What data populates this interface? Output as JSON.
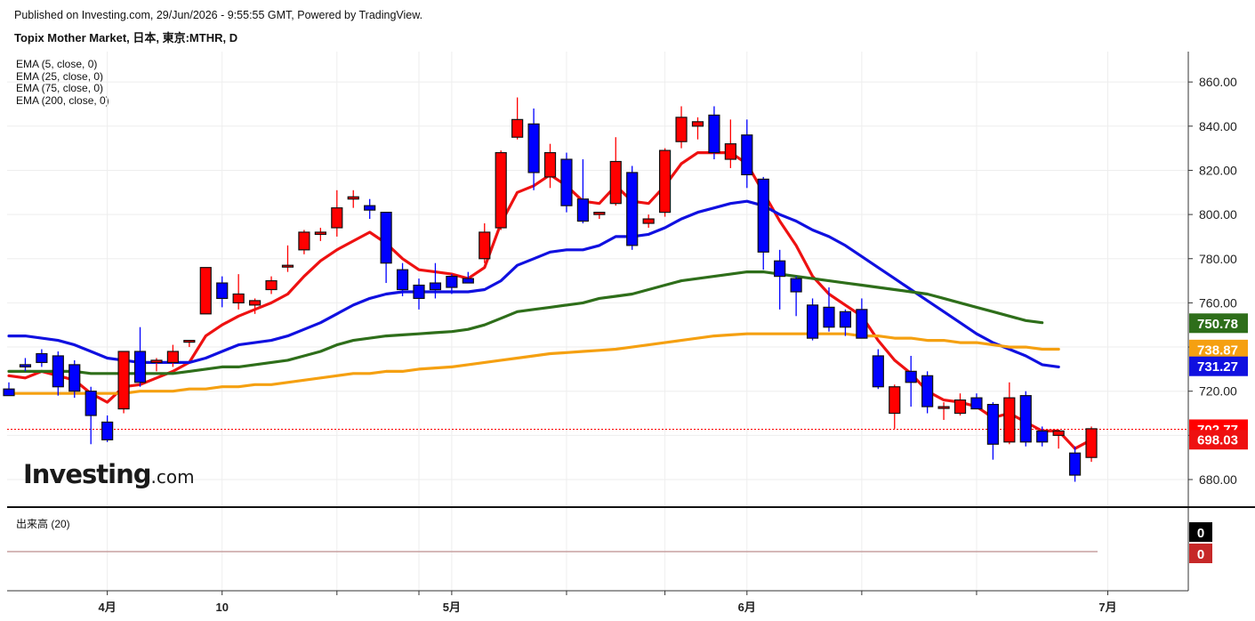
{
  "header": {
    "published": "Published on Investing.com, 29/Jun/2026 - 9:55:55 GMT, Powered by TradingView.",
    "title": "Topix Mother Market, 日本, 東京:MTHR, D"
  },
  "legend": {
    "ema5": "EMA (5, close, 0)",
    "ema25": "EMA (25, close, 0)",
    "ema75": "EMA (75, close, 0)",
    "ema200": "EMA (200, close, 0)"
  },
  "logo": {
    "main": "Investing",
    "suffix": ".com"
  },
  "volume": {
    "label": "出来高 (20)",
    "value_up": "0",
    "value_down": "0"
  },
  "colors": {
    "up": "#ff0000",
    "down": "#0000ff",
    "ema5": "#ee1111",
    "ema25": "#1010e0",
    "ema75": "#2e6e1a",
    "ema200": "#f5a011",
    "current_line": "#ff0000",
    "grid": "#eeeeee"
  },
  "chart_data": {
    "type": "candlestick",
    "y_axis": {
      "min": 670,
      "max": 866,
      "ticks": [
        "680.00",
        "700.00",
        "720.00",
        "740.00",
        "760.00",
        "780.00",
        "800.00",
        "820.00",
        "840.00",
        "860.00"
      ]
    },
    "x_axis": {
      "ticks": [
        {
          "label": "4月",
          "index": 6
        },
        {
          "label": "10",
          "index": 13
        },
        {
          "label": "",
          "index": 20
        },
        {
          "label": "",
          "index": 25
        },
        {
          "label": "5月",
          "index": 27
        },
        {
          "label": "",
          "index": 34
        },
        {
          "label": "",
          "index": 40
        },
        {
          "label": "6月",
          "index": 45
        },
        {
          "label": "",
          "index": 52
        },
        {
          "label": "",
          "index": 59
        },
        {
          "label": "7月",
          "index": 67
        }
      ]
    },
    "current_price": 702.77,
    "price_labels": [
      {
        "label": "750.78",
        "value": 750.78,
        "color": "#2e6e1a"
      },
      {
        "label": "738.87",
        "value": 738.87,
        "color": "#f5a011"
      },
      {
        "label": "731.27",
        "value": 731.27,
        "color": "#1010e0"
      },
      {
        "label": "702.77",
        "value": 702.77,
        "color": "#ff0000"
      },
      {
        "label": "698.03",
        "value": 698.03,
        "color": "#ee1111"
      }
    ],
    "candles": [
      {
        "o": 721,
        "h": 724,
        "l": 718,
        "c": 718
      },
      {
        "o": 732,
        "h": 735,
        "l": 729,
        "c": 731
      },
      {
        "o": 737,
        "h": 739,
        "l": 731,
        "c": 733
      },
      {
        "o": 736,
        "h": 738,
        "l": 718,
        "c": 722
      },
      {
        "o": 732,
        "h": 734,
        "l": 717,
        "c": 720
      },
      {
        "o": 720,
        "h": 722,
        "l": 696,
        "c": 709
      },
      {
        "o": 706,
        "h": 709,
        "l": 697,
        "c": 698
      },
      {
        "o": 712,
        "h": 738,
        "l": 710,
        "c": 738
      },
      {
        "o": 738,
        "h": 749,
        "l": 722,
        "c": 724
      },
      {
        "o": 733,
        "h": 735,
        "l": 729,
        "c": 734
      },
      {
        "o": 733,
        "h": 741,
        "l": 731,
        "c": 738
      },
      {
        "o": 743,
        "h": 743,
        "l": 740,
        "c": 743
      },
      {
        "o": 755,
        "h": 776,
        "l": 755,
        "c": 776
      },
      {
        "o": 769,
        "h": 772,
        "l": 758,
        "c": 762
      },
      {
        "o": 760,
        "h": 773,
        "l": 757,
        "c": 764
      },
      {
        "o": 759,
        "h": 762,
        "l": 755,
        "c": 761
      },
      {
        "o": 766,
        "h": 772,
        "l": 764,
        "c": 770
      },
      {
        "o": 777,
        "h": 786,
        "l": 774,
        "c": 777
      },
      {
        "o": 784,
        "h": 793,
        "l": 782,
        "c": 792
      },
      {
        "o": 791,
        "h": 794,
        "l": 788,
        "c": 792
      },
      {
        "o": 794,
        "h": 811,
        "l": 790,
        "c": 803
      },
      {
        "o": 807,
        "h": 811,
        "l": 803,
        "c": 808
      },
      {
        "o": 804,
        "h": 807,
        "l": 798,
        "c": 802
      },
      {
        "o": 801,
        "h": 801,
        "l": 769,
        "c": 778
      },
      {
        "o": 775,
        "h": 778,
        "l": 763,
        "c": 766
      },
      {
        "o": 768,
        "h": 771,
        "l": 757,
        "c": 762
      },
      {
        "o": 769,
        "h": 778,
        "l": 762,
        "c": 766
      },
      {
        "o": 772,
        "h": 773,
        "l": 764,
        "c": 767
      },
      {
        "o": 771,
        "h": 774,
        "l": 769,
        "c": 769
      },
      {
        "o": 780,
        "h": 796,
        "l": 778,
        "c": 792
      },
      {
        "o": 794,
        "h": 829,
        "l": 793,
        "c": 828
      },
      {
        "o": 835,
        "h": 853,
        "l": 834,
        "c": 843
      },
      {
        "o": 841,
        "h": 848,
        "l": 811,
        "c": 819
      },
      {
        "o": 817,
        "h": 832,
        "l": 812,
        "c": 828
      },
      {
        "o": 825,
        "h": 828,
        "l": 801,
        "c": 804
      },
      {
        "o": 807,
        "h": 825,
        "l": 796,
        "c": 797
      },
      {
        "o": 800,
        "h": 801,
        "l": 798,
        "c": 801
      },
      {
        "o": 805,
        "h": 835,
        "l": 804,
        "c": 824
      },
      {
        "o": 819,
        "h": 822,
        "l": 784,
        "c": 786
      },
      {
        "o": 796,
        "h": 800,
        "l": 794,
        "c": 798
      },
      {
        "o": 801,
        "h": 830,
        "l": 799,
        "c": 829
      },
      {
        "o": 833,
        "h": 849,
        "l": 830,
        "c": 844
      },
      {
        "o": 840,
        "h": 844,
        "l": 834,
        "c": 842
      },
      {
        "o": 845,
        "h": 849,
        "l": 825,
        "c": 828
      },
      {
        "o": 825,
        "h": 843,
        "l": 821,
        "c": 832
      },
      {
        "o": 836,
        "h": 843,
        "l": 812,
        "c": 818
      },
      {
        "o": 816,
        "h": 817,
        "l": 775,
        "c": 783
      },
      {
        "o": 779,
        "h": 784,
        "l": 757,
        "c": 772
      },
      {
        "o": 771,
        "h": 772,
        "l": 754,
        "c": 765
      },
      {
        "o": 759,
        "h": 762,
        "l": 743,
        "c": 744
      },
      {
        "o": 758,
        "h": 767,
        "l": 747,
        "c": 749
      },
      {
        "o": 756,
        "h": 757,
        "l": 745,
        "c": 749
      },
      {
        "o": 757,
        "h": 762,
        "l": 745,
        "c": 744
      },
      {
        "o": 736,
        "h": 739,
        "l": 721,
        "c": 722
      },
      {
        "o": 710,
        "h": 723,
        "l": 703,
        "c": 722
      },
      {
        "o": 729,
        "h": 736,
        "l": 713,
        "c": 724
      },
      {
        "o": 727,
        "h": 729,
        "l": 710,
        "c": 713
      },
      {
        "o": 713,
        "h": 715,
        "l": 707,
        "c": 713
      },
      {
        "o": 710,
        "h": 719,
        "l": 709,
        "c": 716
      },
      {
        "o": 717,
        "h": 719,
        "l": 712,
        "c": 712
      },
      {
        "o": 714,
        "h": 715,
        "l": 689,
        "c": 696
      },
      {
        "o": 697,
        "h": 724,
        "l": 696,
        "c": 717
      },
      {
        "o": 718,
        "h": 720,
        "l": 695,
        "c": 697
      },
      {
        "o": 702,
        "h": 704,
        "l": 695,
        "c": 697
      },
      {
        "o": 700,
        "h": 702,
        "l": 694,
        "c": 702
      },
      {
        "o": 692,
        "h": 695,
        "l": 679,
        "c": 682
      },
      {
        "o": 690,
        "h": 704,
        "l": 688,
        "c": 703
      }
    ],
    "series": [
      {
        "name": "EMA (5, close, 0)",
        "color": "#ee1111",
        "values": [
          727,
          726,
          729,
          727,
          725,
          719,
          715,
          722,
          723,
          726,
          729,
          733,
          745,
          750,
          754,
          757,
          760,
          764,
          772,
          779,
          784,
          788,
          792,
          787,
          780,
          775,
          774,
          773,
          771,
          776,
          796,
          810,
          813,
          818,
          813,
          806,
          805,
          813,
          806,
          805,
          813,
          823,
          828,
          828,
          828,
          823,
          810,
          797,
          786,
          772,
          764,
          759,
          754,
          743,
          734,
          728,
          720,
          716,
          715,
          713,
          708,
          710,
          706,
          702,
          702,
          694,
          698
        ]
      },
      {
        "name": "EMA (25, close, 0)",
        "color": "#1010e0",
        "values": [
          745,
          745,
          744,
          743,
          741,
          738,
          735,
          734,
          733,
          733,
          733,
          733,
          735,
          738,
          741,
          742,
          743,
          745,
          748,
          751,
          755,
          759,
          762,
          764,
          765,
          765,
          765,
          765,
          765,
          766,
          770,
          777,
          780,
          783,
          784,
          784,
          786,
          790,
          790,
          791,
          794,
          798,
          801,
          803,
          805,
          806,
          804,
          800,
          797,
          793,
          790,
          786,
          781,
          776,
          771,
          766,
          761,
          756,
          751,
          746,
          742,
          739,
          736,
          732,
          731
        ]
      },
      {
        "name": "EMA (75, close, 0)",
        "color": "#2e6e1a",
        "values": [
          729,
          729,
          729,
          729,
          729,
          728,
          728,
          728,
          728,
          728,
          728,
          729,
          730,
          731,
          731,
          732,
          733,
          734,
          736,
          738,
          741,
          743,
          744,
          745,
          745.5,
          746,
          746.5,
          747,
          748,
          750,
          753,
          756,
          757,
          758,
          759,
          760,
          762,
          763,
          764,
          766,
          768,
          770,
          771,
          772,
          773,
          774,
          774,
          773,
          772,
          771,
          770,
          769,
          768,
          767,
          766,
          765,
          764,
          762,
          760,
          758,
          756,
          754,
          752,
          751
        ]
      },
      {
        "name": "EMA (200, close, 0)",
        "color": "#f5a011",
        "values": [
          719,
          719,
          719,
          719,
          719,
          719,
          719,
          719,
          720,
          720,
          720,
          721,
          721,
          722,
          722,
          723,
          723,
          724,
          725,
          726,
          727,
          728,
          728,
          729,
          729,
          730,
          730.5,
          731,
          732,
          733,
          734,
          735,
          736,
          737,
          737.5,
          738,
          738.5,
          739,
          740,
          741,
          742,
          743,
          744,
          745,
          745.5,
          746,
          746,
          746,
          746,
          746,
          746,
          746,
          745,
          745,
          744,
          744,
          743,
          743,
          742,
          742,
          741,
          740,
          740,
          739,
          739
        ]
      }
    ]
  }
}
